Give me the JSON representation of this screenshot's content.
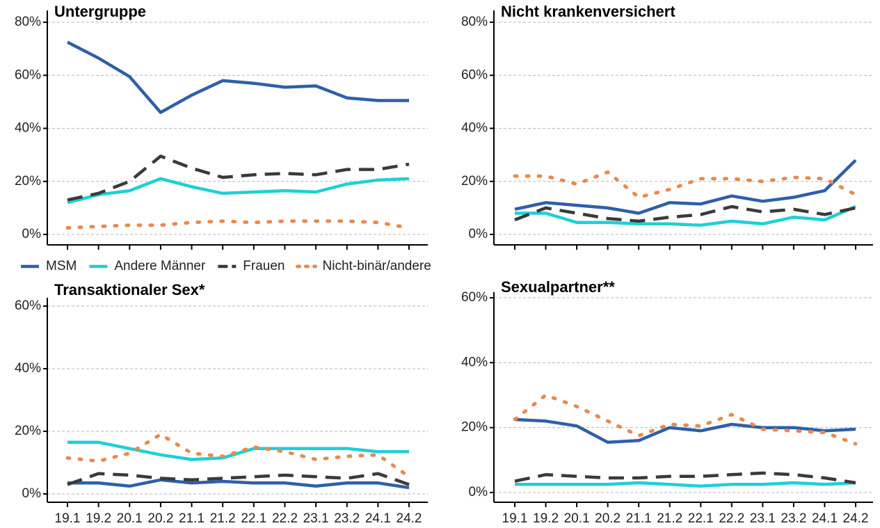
{
  "legend": {
    "series": [
      {
        "name": "MSM",
        "color": "#2e5fa8",
        "dash": "solid"
      },
      {
        "name": "Andere Männer",
        "color": "#1fcfd6",
        "dash": "dashed-none"
      },
      {
        "name": "Frauen",
        "color": "#3a3a3a",
        "dash": "dashed"
      },
      {
        "name": "Nicht-binär/andere",
        "color": "#e8894f",
        "dash": "dotted"
      }
    ]
  },
  "chart_data": [
    {
      "type": "line",
      "title": "Untergruppe",
      "ylim": [
        0,
        80
      ],
      "yticks": [
        {
          "value": 0,
          "label": "0%"
        },
        {
          "value": 20,
          "label": "20%"
        },
        {
          "value": 40,
          "label": "40%"
        },
        {
          "value": 60,
          "label": "60%"
        },
        {
          "value": 80,
          "label": "80%"
        }
      ],
      "grid": true,
      "series": [
        {
          "values": [
            72.5,
            66.5,
            59.5,
            46,
            52.5,
            58,
            57,
            55.5,
            56,
            51.5,
            50.5,
            50.5
          ]
        },
        {
          "values": [
            12,
            15,
            16.5,
            21,
            18,
            15.5,
            16,
            16.5,
            16,
            19,
            20.5,
            21
          ]
        },
        {
          "values": [
            13,
            15.5,
            20,
            29.5,
            25,
            21.5,
            22.5,
            23,
            22.5,
            24.5,
            24.5,
            26.5
          ]
        },
        {
          "values": [
            2.5,
            3,
            3.5,
            3.5,
            4.5,
            5,
            4.5,
            5,
            5,
            5,
            4.5,
            2.5
          ]
        }
      ]
    },
    {
      "type": "line",
      "title": "Nicht krankenversichert",
      "ylim": [
        0,
        80
      ],
      "yticks": [
        {
          "value": 0,
          "label": "0%"
        },
        {
          "value": 20,
          "label": "20%"
        },
        {
          "value": 40,
          "label": "40%"
        },
        {
          "value": 60,
          "label": "60%"
        },
        {
          "value": 80,
          "label": "80%"
        }
      ],
      "grid": true,
      "series": [
        {
          "values": [
            9.5,
            12,
            11,
            10,
            8,
            12,
            11.5,
            14.5,
            12.5,
            14,
            16.5,
            28
          ]
        },
        {
          "values": [
            8,
            8,
            4.5,
            4.5,
            4,
            4,
            3.5,
            5,
            4,
            6.5,
            5.5,
            10.5
          ]
        },
        {
          "values": [
            5.5,
            10,
            8,
            6,
            5,
            6.5,
            7.5,
            10.5,
            8.5,
            9.5,
            7.5,
            10
          ]
        },
        {
          "values": [
            22,
            22,
            19,
            23.5,
            14,
            17,
            21,
            21,
            20,
            21.5,
            21,
            15
          ]
        }
      ]
    },
    {
      "type": "line",
      "title": "Transaktionaler Sex*",
      "categories": [
        "19.1",
        "19.2",
        "20.1",
        "20.2",
        "21.1",
        "21.2",
        "22.1",
        "22.2",
        "23.1",
        "23.2",
        "24.1",
        "24.2"
      ],
      "ylim": [
        0,
        60
      ],
      "yticks": [
        {
          "value": 0,
          "label": "0%"
        },
        {
          "value": 20,
          "label": "20%"
        },
        {
          "value": 40,
          "label": "40%"
        },
        {
          "value": 60,
          "label": "60%"
        }
      ],
      "grid": true,
      "series": [
        {
          "values": [
            3.5,
            3.5,
            2.5,
            4.5,
            3.5,
            4,
            3.5,
            3.5,
            2.5,
            3.5,
            3.5,
            2
          ]
        },
        {
          "values": [
            16.5,
            16.5,
            14.5,
            12.5,
            11,
            11.5,
            14.5,
            14.5,
            14.5,
            14.5,
            13.5,
            13.5
          ]
        },
        {
          "values": [
            3,
            6.5,
            6,
            5,
            4.5,
            5,
            5.5,
            6,
            5.5,
            5,
            6.5,
            3
          ]
        },
        {
          "values": [
            11.5,
            10.5,
            13,
            19,
            13,
            12,
            15,
            13.5,
            11,
            12,
            12.5,
            5.5
          ]
        }
      ]
    },
    {
      "type": "line",
      "title": "Sexualpartner**",
      "categories": [
        "19.1",
        "19.2",
        "20.1",
        "20.2",
        "21.1",
        "21.2",
        "22.1",
        "22.2",
        "23.1",
        "23.2",
        "24.1",
        "24.2"
      ],
      "ylim": [
        0,
        60
      ],
      "yticks": [
        {
          "value": 0,
          "label": "0%"
        },
        {
          "value": 20,
          "label": "20%"
        },
        {
          "value": 40,
          "label": "40%"
        },
        {
          "value": 60,
          "label": "60%"
        }
      ],
      "grid": true,
      "series": [
        {
          "values": [
            22.5,
            22,
            20.5,
            15.5,
            16,
            20,
            19,
            21,
            20,
            20,
            19,
            19.5
          ]
        },
        {
          "values": [
            2.5,
            2.5,
            2.5,
            2.5,
            3,
            2.5,
            2,
            2.5,
            2.5,
            3,
            2.5,
            3
          ]
        },
        {
          "values": [
            3.5,
            5.5,
            5,
            4.5,
            4.5,
            5,
            5,
            5.5,
            6,
            5.5,
            4.5,
            3
          ]
        },
        {
          "values": [
            22.5,
            30,
            26.5,
            22,
            17.5,
            21,
            20.5,
            24,
            19.5,
            19,
            18.5,
            15
          ]
        }
      ]
    }
  ]
}
